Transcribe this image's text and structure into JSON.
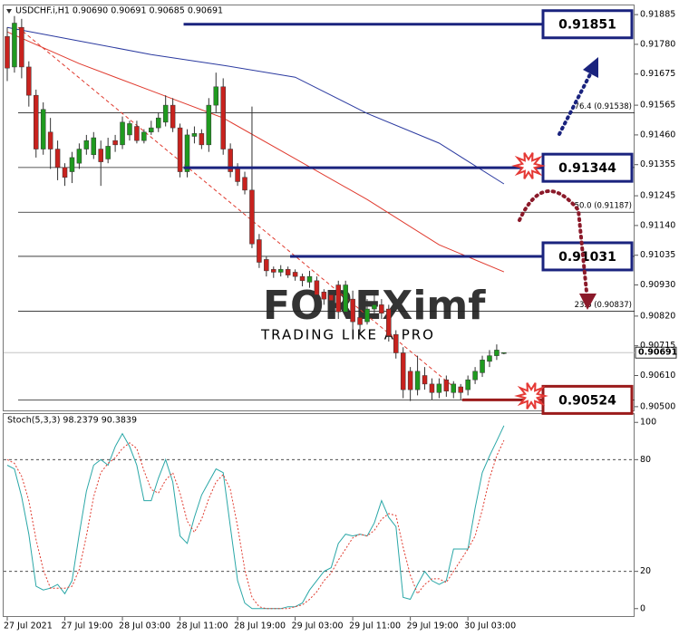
{
  "chart_data": [
    {
      "type": "candlestick",
      "title": "USDCHF.i,H1 0.90690 0.90691 0.90685 0.90691",
      "categories": [
        "27 Jul 2021",
        null,
        null,
        null,
        null,
        null,
        null,
        null,
        "27 Jul 19:00",
        null,
        null,
        null,
        null,
        null,
        null,
        null,
        "28 Jul 03:00",
        null,
        null,
        null,
        null,
        null,
        null,
        null,
        "28 Jul 11:00",
        null,
        null,
        null,
        null,
        null,
        null,
        null,
        "28 Jul 19:00",
        null,
        null,
        null,
        null,
        null,
        null,
        null,
        "29 Jul 03:00",
        null,
        null,
        null,
        null,
        null,
        null,
        null,
        "29 Jul 11:00",
        null,
        null,
        null,
        null,
        null,
        null,
        null,
        "29 Jul 19:00",
        null,
        null,
        null,
        null,
        null,
        null,
        null,
        "30 Jul 03:00",
        null,
        null,
        null,
        null,
        null
      ],
      "open": [
        0.91808,
        0.917,
        0.9184,
        0.917,
        0.916,
        0.9141,
        0.9147,
        0.9141,
        0.91345,
        0.9133,
        0.9136,
        0.9141,
        0.9139,
        0.9141,
        0.91375,
        0.9144,
        0.91425,
        0.9146,
        0.9149,
        0.9144,
        0.9147,
        0.91485,
        0.91505,
        0.91565,
        0.91485,
        0.9133,
        0.91455,
        0.91465,
        0.91425,
        0.91565,
        0.9163,
        0.9141,
        0.91345,
        0.9131,
        0.91265,
        0.9109,
        0.9102,
        0.90985,
        0.90975,
        0.90985,
        0.90975,
        0.9096,
        0.9094,
        0.90945,
        0.90905,
        0.90895,
        0.9093,
        0.90835,
        0.9088,
        0.90815,
        0.908,
        0.90845,
        0.9086,
        0.90845,
        0.90755,
        0.9069,
        0.90625,
        0.9056,
        0.9061,
        0.9058,
        0.9055,
        0.90595,
        0.9055,
        0.9057,
        0.9056,
        0.90595,
        0.9062,
        0.9066,
        0.9068,
        0.9069
      ],
      "high": [
        0.9184,
        0.9188,
        0.9187,
        0.9172,
        0.9162,
        0.91575,
        0.9152,
        0.9144,
        0.9136,
        0.914,
        0.9143,
        0.9146,
        0.9147,
        0.9144,
        0.9145,
        0.9146,
        0.91525,
        0.9151,
        0.9151,
        0.9148,
        0.9151,
        0.9154,
        0.916,
        0.9159,
        0.915,
        0.9148,
        0.9149,
        0.9148,
        0.9159,
        0.9168,
        0.9166,
        0.9143,
        0.9136,
        0.9133,
        0.9156,
        0.9111,
        0.9103,
        0.90995,
        0.91,
        0.90995,
        0.90985,
        0.9097,
        0.9098,
        0.9096,
        0.90915,
        0.90905,
        0.90945,
        0.90945,
        0.9091,
        0.9083,
        0.9088,
        0.9091,
        0.9088,
        0.9086,
        0.9077,
        0.9071,
        0.9064,
        0.9068,
        0.9064,
        0.906,
        0.906,
        0.9061,
        0.9059,
        0.9058,
        0.9061,
        0.9064,
        0.9068,
        0.907,
        0.9072,
        0.90691
      ],
      "low": [
        0.9165,
        0.9168,
        0.9166,
        0.9156,
        0.9138,
        0.9139,
        0.9134,
        0.913,
        0.9128,
        0.9129,
        0.9134,
        0.9139,
        0.91375,
        0.9128,
        0.9136,
        0.914,
        0.9141,
        0.9144,
        0.9143,
        0.9143,
        0.9146,
        0.9147,
        0.9149,
        0.9147,
        0.9131,
        0.9131,
        0.9143,
        0.9141,
        0.914,
        0.9154,
        0.9139,
        0.9131,
        0.9128,
        0.9125,
        0.9106,
        0.9099,
        0.9096,
        0.90955,
        0.9096,
        0.90955,
        0.90945,
        0.90925,
        0.9092,
        0.9088,
        0.9086,
        0.9086,
        0.9081,
        0.9082,
        0.9077,
        0.9076,
        0.9079,
        0.9083,
        0.9081,
        0.9073,
        0.9067,
        0.9053,
        0.9052,
        0.9054,
        0.9056,
        0.90525,
        0.9053,
        0.90535,
        0.9053,
        0.90524,
        0.9054,
        0.9058,
        0.90605,
        0.9064,
        0.90665,
        0.90685
      ],
      "close": [
        0.91696,
        0.91855,
        0.917,
        0.916,
        0.9141,
        0.9155,
        0.9141,
        0.91345,
        0.9131,
        0.9138,
        0.9141,
        0.9144,
        0.9145,
        0.91365,
        0.9142,
        0.91425,
        0.91505,
        0.915,
        0.9144,
        0.9147,
        0.91485,
        0.9152,
        0.91565,
        0.91485,
        0.9133,
        0.9146,
        0.91465,
        0.91425,
        0.91565,
        0.9163,
        0.9141,
        0.9133,
        0.91295,
        0.91265,
        0.91075,
        0.9101,
        0.9098,
        0.90975,
        0.90985,
        0.90965,
        0.9096,
        0.90945,
        0.9096,
        0.90895,
        0.9088,
        0.90875,
        0.90835,
        0.9093,
        0.908,
        0.9079,
        0.90845,
        0.9086,
        0.9083,
        0.9075,
        0.9069,
        0.9056,
        0.9056,
        0.90625,
        0.9058,
        0.9055,
        0.9058,
        0.90555,
        0.9058,
        0.9055,
        0.90595,
        0.90625,
        0.90665,
        0.9068,
        0.907,
        0.90691
      ],
      "up_color": "#1f9a1f",
      "down_color": "#c8221e",
      "overlays": [
        {
          "x": [
            0,
            10,
            20,
            30,
            40,
            50,
            60,
            69
          ],
          "values": [
            0.9184,
            0.91792,
            0.91744,
            0.91706,
            0.91664,
            0.91536,
            0.91431,
            0.91287
          ],
          "color": "#2b3aa0"
        },
        {
          "x": [
            0,
            10,
            20,
            30,
            40,
            50,
            60,
            69
          ],
          "values": [
            0.91824,
            0.91712,
            0.91616,
            0.9152,
            0.91376,
            0.91232,
            0.91072,
            0.90976
          ],
          "color": "#e03a2e"
        }
      ],
      "trendline": {
        "x": [
          1.5,
          62
        ],
        "values": [
          0.9184,
          0.9057
        ],
        "color": "#e03a2e"
      },
      "fib": {
        "levels": [
          0.91538,
          0.91345,
          0.91187,
          0.91031,
          0.90837,
          0.90524
        ],
        "labels": [
          "76.4 (0.91538)",
          null,
          "50.0 (0.91187)",
          null,
          "23.6 (0.90837)",
          null
        ]
      },
      "levels": [
        {
          "value": 0.91851,
          "color": "#1a237e"
        },
        {
          "value": 0.91344,
          "color": "#1a237e"
        },
        {
          "value": 0.91031,
          "color": "#1a237e"
        },
        {
          "value": 0.90524,
          "color": "#9b1b1b"
        }
      ],
      "watermark": [
        "FOREXimf",
        "TRADING LIKE A PRO"
      ],
      "ylim": [
        0.9049,
        0.91911
      ],
      "yticks": [
        0.91885,
        {
          "value": 0.9178,
          "label": "0.91780"
        },
        0.91675,
        0.91565,
        {
          "value": 0.9146,
          "label": "0.91460"
        },
        0.91355,
        0.91245,
        {
          "value": 0.9114,
          "label": "0.91140"
        },
        0.91035,
        {
          "value": 0.9093,
          "label": "0.90930"
        },
        {
          "value": 0.9082,
          "label": "0.90820"
        },
        0.90715,
        {
          "value": 0.9061,
          "label": "0.90610"
        },
        {
          "value": 0.905,
          "label": "0.90500"
        }
      ]
    },
    {
      "type": "line",
      "title": "Stoch(5,3,3) 98.2379 90.3839",
      "series": [
        {
          "color": "#2aa7a7",
          "dash": false,
          "values": [
            77,
            75,
            60,
            40,
            12,
            10,
            11,
            13,
            8,
            15,
            40,
            63,
            77,
            80,
            77,
            87,
            94,
            87,
            77,
            58,
            58,
            70,
            80,
            68,
            39,
            35,
            49,
            61,
            68,
            75,
            73,
            44,
            15,
            3,
            0,
            0,
            0,
            0,
            0,
            1,
            1,
            3,
            10,
            15,
            20,
            22,
            35,
            40,
            39,
            40,
            39,
            46,
            58,
            49,
            44,
            6,
            5,
            13,
            20,
            15,
            13,
            15,
            32,
            32,
            32,
            54,
            73,
            82,
            90,
            98.2379
          ]
        },
        {
          "color": "#e03a2e",
          "dash": true,
          "values": [
            80,
            78,
            71,
            58,
            37,
            21,
            11,
            11,
            11,
            12,
            21,
            39,
            60,
            73,
            78,
            81,
            86,
            89,
            86,
            74,
            64,
            62,
            69,
            73,
            62,
            47,
            41,
            48,
            59,
            68,
            72,
            64,
            44,
            21,
            6,
            1,
            0,
            0,
            0,
            0,
            1,
            2,
            5,
            9,
            15,
            19,
            26,
            32,
            38,
            40,
            39,
            42,
            48,
            51,
            50,
            33,
            18,
            8,
            13,
            16,
            16,
            14,
            20,
            26,
            32,
            39,
            53,
            70,
            82,
            90.3839
          ]
        }
      ],
      "levels": [
        80,
        20
      ],
      "ylim": [
        -4,
        104
      ],
      "yticks": [
        100,
        80,
        20,
        0
      ]
    }
  ]
}
